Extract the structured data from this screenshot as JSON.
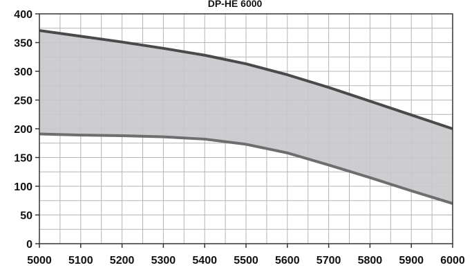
{
  "chart_data": {
    "type": "area",
    "title": "DP-HE 6000",
    "xlabel": "",
    "ylabel": "",
    "xlim": [
      5000,
      6000
    ],
    "ylim": [
      0,
      400
    ],
    "x_ticks": [
      5000,
      5100,
      5200,
      5300,
      5400,
      5500,
      5600,
      5700,
      5800,
      5900,
      6000
    ],
    "y_ticks": [
      0,
      50,
      100,
      150,
      200,
      250,
      300,
      350,
      400
    ],
    "grid": true,
    "fill_color": "#c8c8ca",
    "upper_line_color": "#4a4a4c",
    "lower_line_color": "#6e6e70",
    "x": [
      5000,
      5100,
      5200,
      5300,
      5400,
      5500,
      5600,
      5700,
      5800,
      5900,
      6000
    ],
    "series": [
      {
        "values": [
          371,
          361,
          351,
          340,
          328,
          313,
          294,
          272,
          248,
          224,
          200
        ]
      },
      {
        "values": [
          191,
          189,
          188,
          186,
          182,
          173,
          158,
          137,
          115,
          92,
          70
        ]
      }
    ]
  }
}
